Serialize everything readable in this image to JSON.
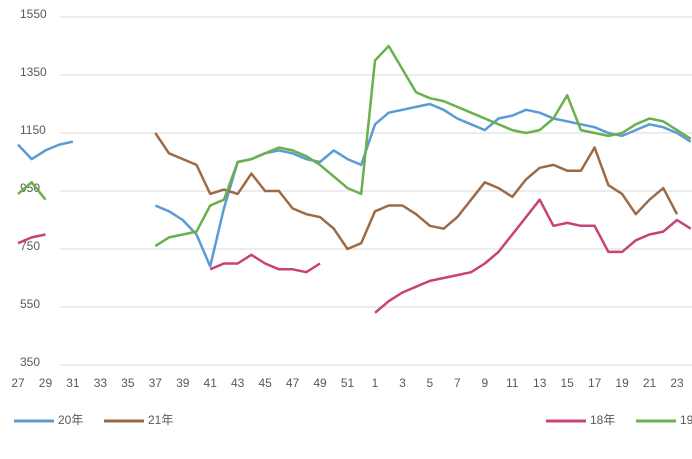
{
  "chart_data": {
    "type": "line",
    "categories": [
      "27",
      null,
      "29",
      null,
      "31",
      null,
      "33",
      null,
      "35",
      null,
      "37",
      null,
      "39",
      null,
      "41",
      null,
      "43",
      null,
      "45",
      null,
      "47",
      null,
      "49",
      null,
      "51",
      null,
      "1",
      null,
      "3",
      null,
      "5",
      null,
      "7",
      null,
      "9",
      null,
      "11",
      null,
      "13",
      null,
      "15",
      null,
      "17",
      null,
      "19",
      null,
      "21",
      null,
      "23",
      null
    ],
    "ylim": [
      350,
      1550
    ],
    "yticks": [
      350,
      550,
      750,
      950,
      1150,
      1350,
      1550
    ],
    "grid": true,
    "series": [
      {
        "name": "20年",
        "color": "#5b9bd5",
        "values": [
          1110,
          1060,
          1090,
          1110,
          1120,
          null,
          null,
          null,
          null,
          null,
          900,
          880,
          850,
          800,
          690,
          890,
          1050,
          1060,
          1080,
          1090,
          1080,
          1060,
          1050,
          1090,
          1060,
          1040,
          1180,
          1220,
          1230,
          1240,
          1250,
          1230,
          1200,
          1180,
          1160,
          1200,
          1210,
          1230,
          1220,
          1200,
          1190,
          1180,
          1170,
          1150,
          1140,
          1160,
          1180,
          1170,
          1150,
          1120
        ]
      },
      {
        "name": "21年",
        "color": "#9c6b46",
        "values": [
          null,
          null,
          null,
          null,
          null,
          null,
          null,
          null,
          null,
          null,
          1150,
          1080,
          1060,
          1040,
          940,
          955,
          940,
          1010,
          950,
          950,
          890,
          870,
          860,
          820,
          750,
          770,
          880,
          900,
          900,
          870,
          830,
          820,
          860,
          920,
          980,
          960,
          930,
          990,
          1030,
          1040,
          1020,
          1020,
          1100,
          970,
          940,
          870,
          920,
          960,
          870,
          null
        ]
      },
      {
        "name": "18年",
        "color": "#c8417a",
        "values": [
          770,
          790,
          800,
          null,
          null,
          null,
          null,
          null,
          null,
          null,
          null,
          null,
          null,
          null,
          680,
          700,
          700,
          730,
          700,
          680,
          680,
          670,
          700,
          null,
          null,
          null,
          530,
          570,
          600,
          620,
          640,
          650,
          660,
          670,
          700,
          740,
          800,
          860,
          920,
          830,
          840,
          830,
          830,
          740,
          740,
          780,
          800,
          810,
          850,
          820
        ]
      },
      {
        "name": "19",
        "color": "#6ab04c",
        "values": [
          940,
          980,
          920,
          null,
          null,
          null,
          null,
          null,
          null,
          null,
          760,
          790,
          800,
          810,
          900,
          920,
          1050,
          1060,
          1080,
          1100,
          1090,
          1070,
          1040,
          1000,
          960,
          940,
          1400,
          1450,
          1370,
          1290,
          1270,
          1260,
          1240,
          1220,
          1200,
          1180,
          1160,
          1150,
          1160,
          1200,
          1280,
          1160,
          1150,
          1140,
          1150,
          1180,
          1200,
          1190,
          1160,
          1130
        ]
      }
    ]
  }
}
